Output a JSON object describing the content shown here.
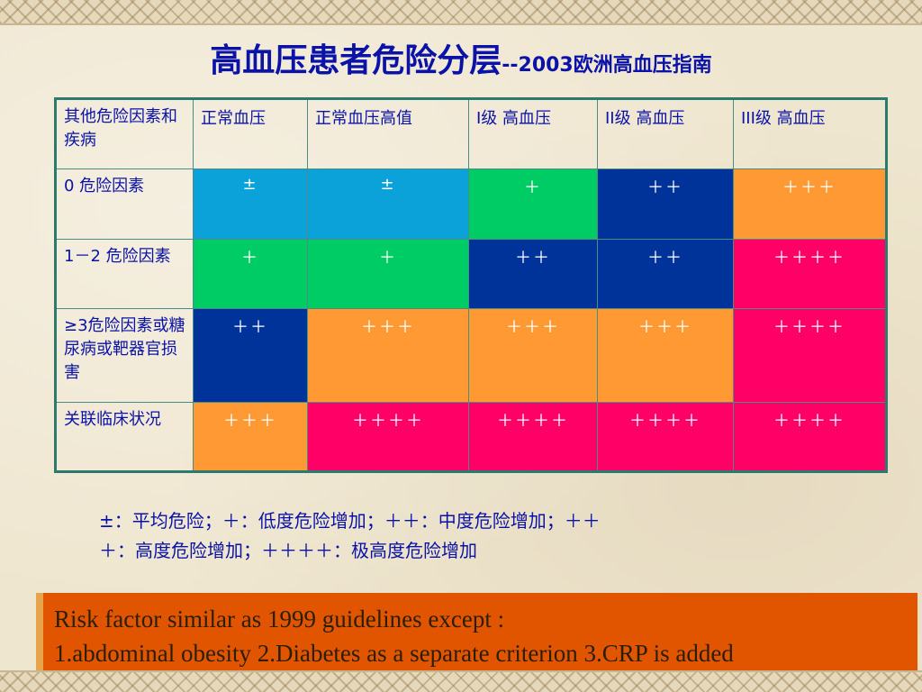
{
  "title": {
    "main": "高血压患者危险分层",
    "sub": "--2003欧洲高血压指南"
  },
  "table": {
    "headers": [
      "其他危险因素和疾病",
      "正常血压",
      "正常血压高值",
      "I级 高血压",
      "II级 高血压",
      "III级 高血压"
    ],
    "rows": [
      {
        "label": "0 危险因素",
        "cells": [
          "±",
          "±",
          "＋",
          "＋＋",
          "＋＋＋"
        ]
      },
      {
        "label": "1－2 危险因素",
        "cells": [
          "＋",
          "＋",
          "＋＋",
          "＋＋",
          "＋＋＋＋"
        ]
      },
      {
        "label": "≥3危险因素或糖尿病或靶器官损害",
        "cells": [
          "＋＋",
          "＋＋＋",
          "＋＋＋",
          "＋＋＋",
          "＋＋＋＋"
        ]
      },
      {
        "label": "关联临床状况",
        "cells": [
          "＋＋＋",
          "＋＋＋＋",
          "＋＋＋＋",
          "＋＋＋＋",
          "＋＋＋＋"
        ]
      }
    ],
    "colors": {
      "cyan": "#0aa2d8",
      "green": "#00cc66",
      "navy": "#003399",
      "orange": "#ff9933",
      "pink": "#ff0066",
      "header_text": "#0a12a8",
      "border": "#2b7a6e"
    }
  },
  "legend": {
    "line1": "±：平均危险；＋：低度危险增加；＋＋：中度危险增加；＋＋",
    "line2": "＋：高度危险增加；＋＋＋＋：极高度危险增加"
  },
  "note": {
    "line1": "Risk factor similar as 1999 guidelines except :",
    "line2": "1.abdominal obesity 2.Diabetes as a separate criterion 3.CRP is added",
    "background": "#e25500"
  }
}
